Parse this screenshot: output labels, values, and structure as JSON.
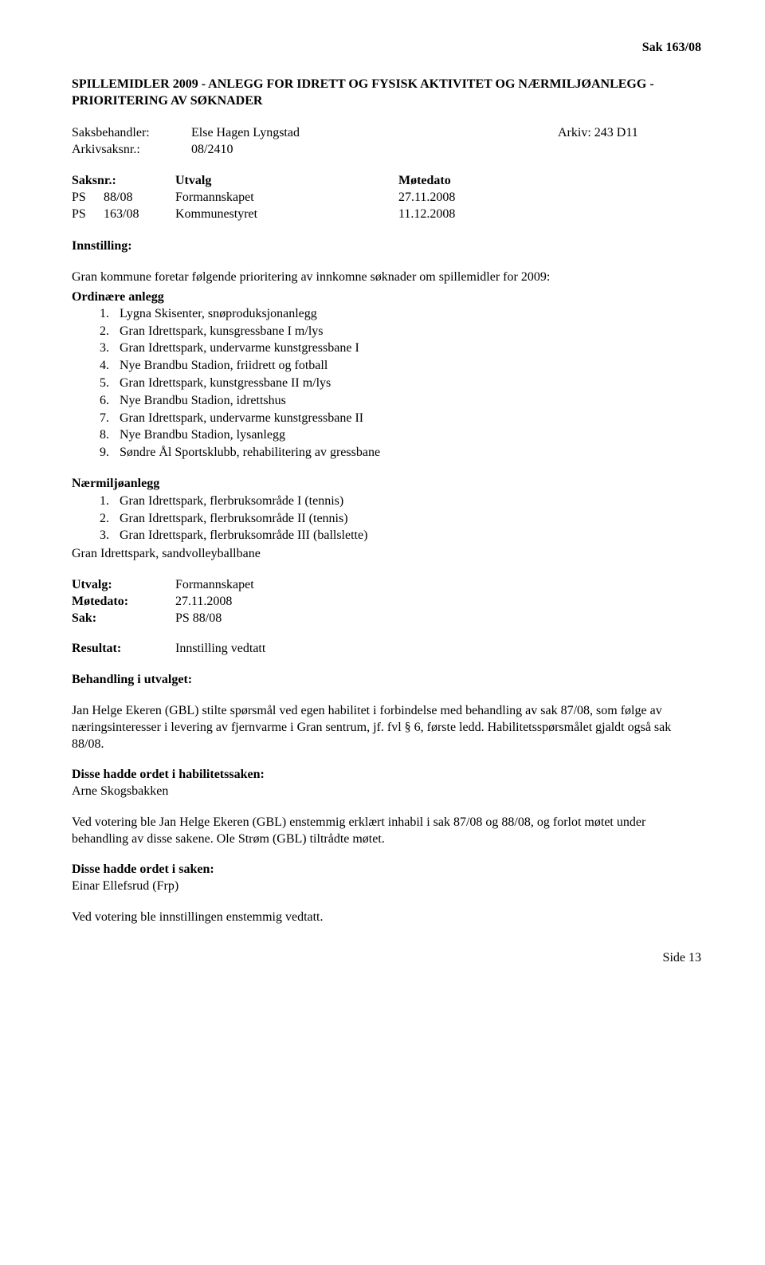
{
  "header": {
    "case_ref": "Sak  163/08"
  },
  "title": "SPILLEMIDLER 2009 - ANLEGG FOR IDRETT OG FYSISK AKTIVITET OG NÆRMILJØANLEGG - PRIORITERING AV SØKNADER",
  "meta": {
    "saksbehandler_label": "Saksbehandler:",
    "saksbehandler_value": "Else Hagen Lyngstad",
    "arkiv_label": "Arkiv: 243 D11",
    "arkivsaksnr_label": "Arkivsaksnr.:",
    "arkivsaksnr_value": "08/2410"
  },
  "committee": {
    "headers": {
      "saksnr": "Saksnr.:",
      "utvalg": "Utvalg",
      "motedato": "Møtedato"
    },
    "rows": [
      {
        "ps": "PS",
        "num": "88/08",
        "utvalg": "Formannskapet",
        "dato": "27.11.2008"
      },
      {
        "ps": "PS",
        "num": "163/08",
        "utvalg": "Kommunestyret",
        "dato": "11.12.2008"
      }
    ]
  },
  "innstilling": {
    "label": "Innstilling:",
    "intro": "Gran kommune foretar følgende prioritering av innkomne søknader om spillemidler for 2009:",
    "ordinaere_label": "Ordinære anlegg",
    "ordinaere_items": [
      "Lygna Skisenter, snøproduksjonanlegg",
      "Gran Idrettspark, kunsgressbane I m/lys",
      "Gran Idrettspark, undervarme kunstgressbane I",
      "Nye Brandbu Stadion, friidrett og fotball",
      "Gran Idrettspark, kunstgressbane II m/lys",
      "Nye Brandbu Stadion, idrettshus",
      "Gran Idrettspark, undervarme kunstgressbane II",
      "Nye Brandbu Stadion, lysanlegg",
      "Søndre Ål Sportsklubb, rehabilitering av gressbane"
    ],
    "naermiljo_label": "Nærmiljøanlegg",
    "naermiljo_items": [
      "Gran Idrettspark, flerbruksområde I (tennis)",
      "Gran Idrettspark, flerbruksområde II (tennis)",
      "Gran Idrettspark, flerbruksområde III (ballslette)"
    ],
    "naermiljo_extra": "Gran Idrettspark, sandvolleyballbane"
  },
  "utvalg_block": {
    "utvalg_label": "Utvalg:",
    "utvalg_value": "Formannskapet",
    "motedato_label": "Møtedato:",
    "motedato_value": "27.11.2008",
    "sak_label": "Sak:",
    "sak_value": "PS  88/08",
    "resultat_label": "Resultat:",
    "resultat_value": "Innstilling vedtatt"
  },
  "behandling": {
    "title": "Behandling i utvalget:",
    "para1": "Jan Helge Ekeren (GBL) stilte spørsmål ved egen habilitet i forbindelse med behandling av sak 87/08, som følge av næringsinteresser i levering av fjernvarme i Gran sentrum, jf. fvl § 6, første ledd. Habilitetsspørsmålet gjaldt også sak 88/08.",
    "disse_hab_label": "Disse hadde ordet i habilitetssaken:",
    "disse_hab_name": "Arne Skogsbakken",
    "para2": "Ved votering ble Jan Helge Ekeren (GBL) enstemmig erklært inhabil i sak 87/08 og 88/08, og forlot møtet under behandling av disse sakene. Ole Strøm (GBL) tiltrådte møtet.",
    "disse_sak_label": "Disse hadde ordet i saken:",
    "disse_sak_name": "Einar Ellefsrud (Frp)",
    "para3": "Ved votering ble innstillingen enstemmig vedtatt."
  },
  "footer": {
    "page": "Side 13"
  }
}
